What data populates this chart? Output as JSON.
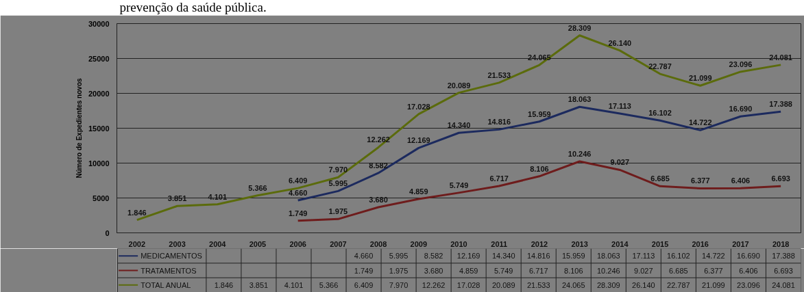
{
  "chart_data": {
    "type": "line",
    "ylabel": "Número de Expedientes novos",
    "annotations": [
      "prevenção da saúde pública."
    ],
    "categories": [
      "2002",
      "2003",
      "2004",
      "2005",
      "2006",
      "2007",
      "2008",
      "2009",
      "2010",
      "2011",
      "2012",
      "2013",
      "2014",
      "2015",
      "2016",
      "2017",
      "2018"
    ],
    "ylim": [
      0,
      30000
    ],
    "yticks": [
      0,
      5000,
      10000,
      15000,
      20000,
      25000,
      30000
    ],
    "grid": "y",
    "legend": "bottom",
    "marker": "none",
    "line_style": "solid",
    "series": [
      {
        "name": "MEDICAMENTOS",
        "color": "#1c2a5e",
        "values": [
          null,
          null,
          null,
          null,
          4660,
          5995,
          8582,
          12169,
          14340,
          14816,
          15959,
          18063,
          17113,
          16102,
          14722,
          16690,
          17388
        ],
        "value_labels": [
          null,
          null,
          null,
          null,
          "4.660",
          "5.995",
          "8.582",
          "12.169",
          "14.340",
          "14.816",
          "15.959",
          "18.063",
          "17.113",
          "16.102",
          "14.722",
          "16.690",
          "17.388"
        ]
      },
      {
        "name": "TRATAMENTOS",
        "color": "#6e1c1c",
        "values": [
          null,
          null,
          null,
          null,
          1749,
          1975,
          3680,
          4859,
          5749,
          6717,
          8106,
          10246,
          9027,
          6685,
          6377,
          6406,
          6693
        ],
        "value_labels": [
          null,
          null,
          null,
          null,
          "1.749",
          "1.975",
          "3.680",
          "4.859",
          "5.749",
          "6.717",
          "8.106",
          "10.246",
          "9.027",
          "6.685",
          "6.377",
          "6.406",
          "6.693"
        ]
      },
      {
        "name": "TOTAL ANUAL",
        "color": "#5b6b0c",
        "values": [
          1846,
          3851,
          4101,
          5366,
          6409,
          7970,
          12262,
          17028,
          20089,
          21533,
          24065,
          28309,
          26140,
          22787,
          21099,
          23096,
          24081
        ],
        "value_labels": [
          "1.846",
          "3.851",
          "4.101",
          "5.366",
          "6.409",
          "7.970",
          "12.262",
          "17.028",
          "20.089",
          "21.533",
          "24.065",
          "28.309",
          "26.140",
          "22.787",
          "21.099",
          "23.096",
          "24.081"
        ]
      }
    ]
  }
}
